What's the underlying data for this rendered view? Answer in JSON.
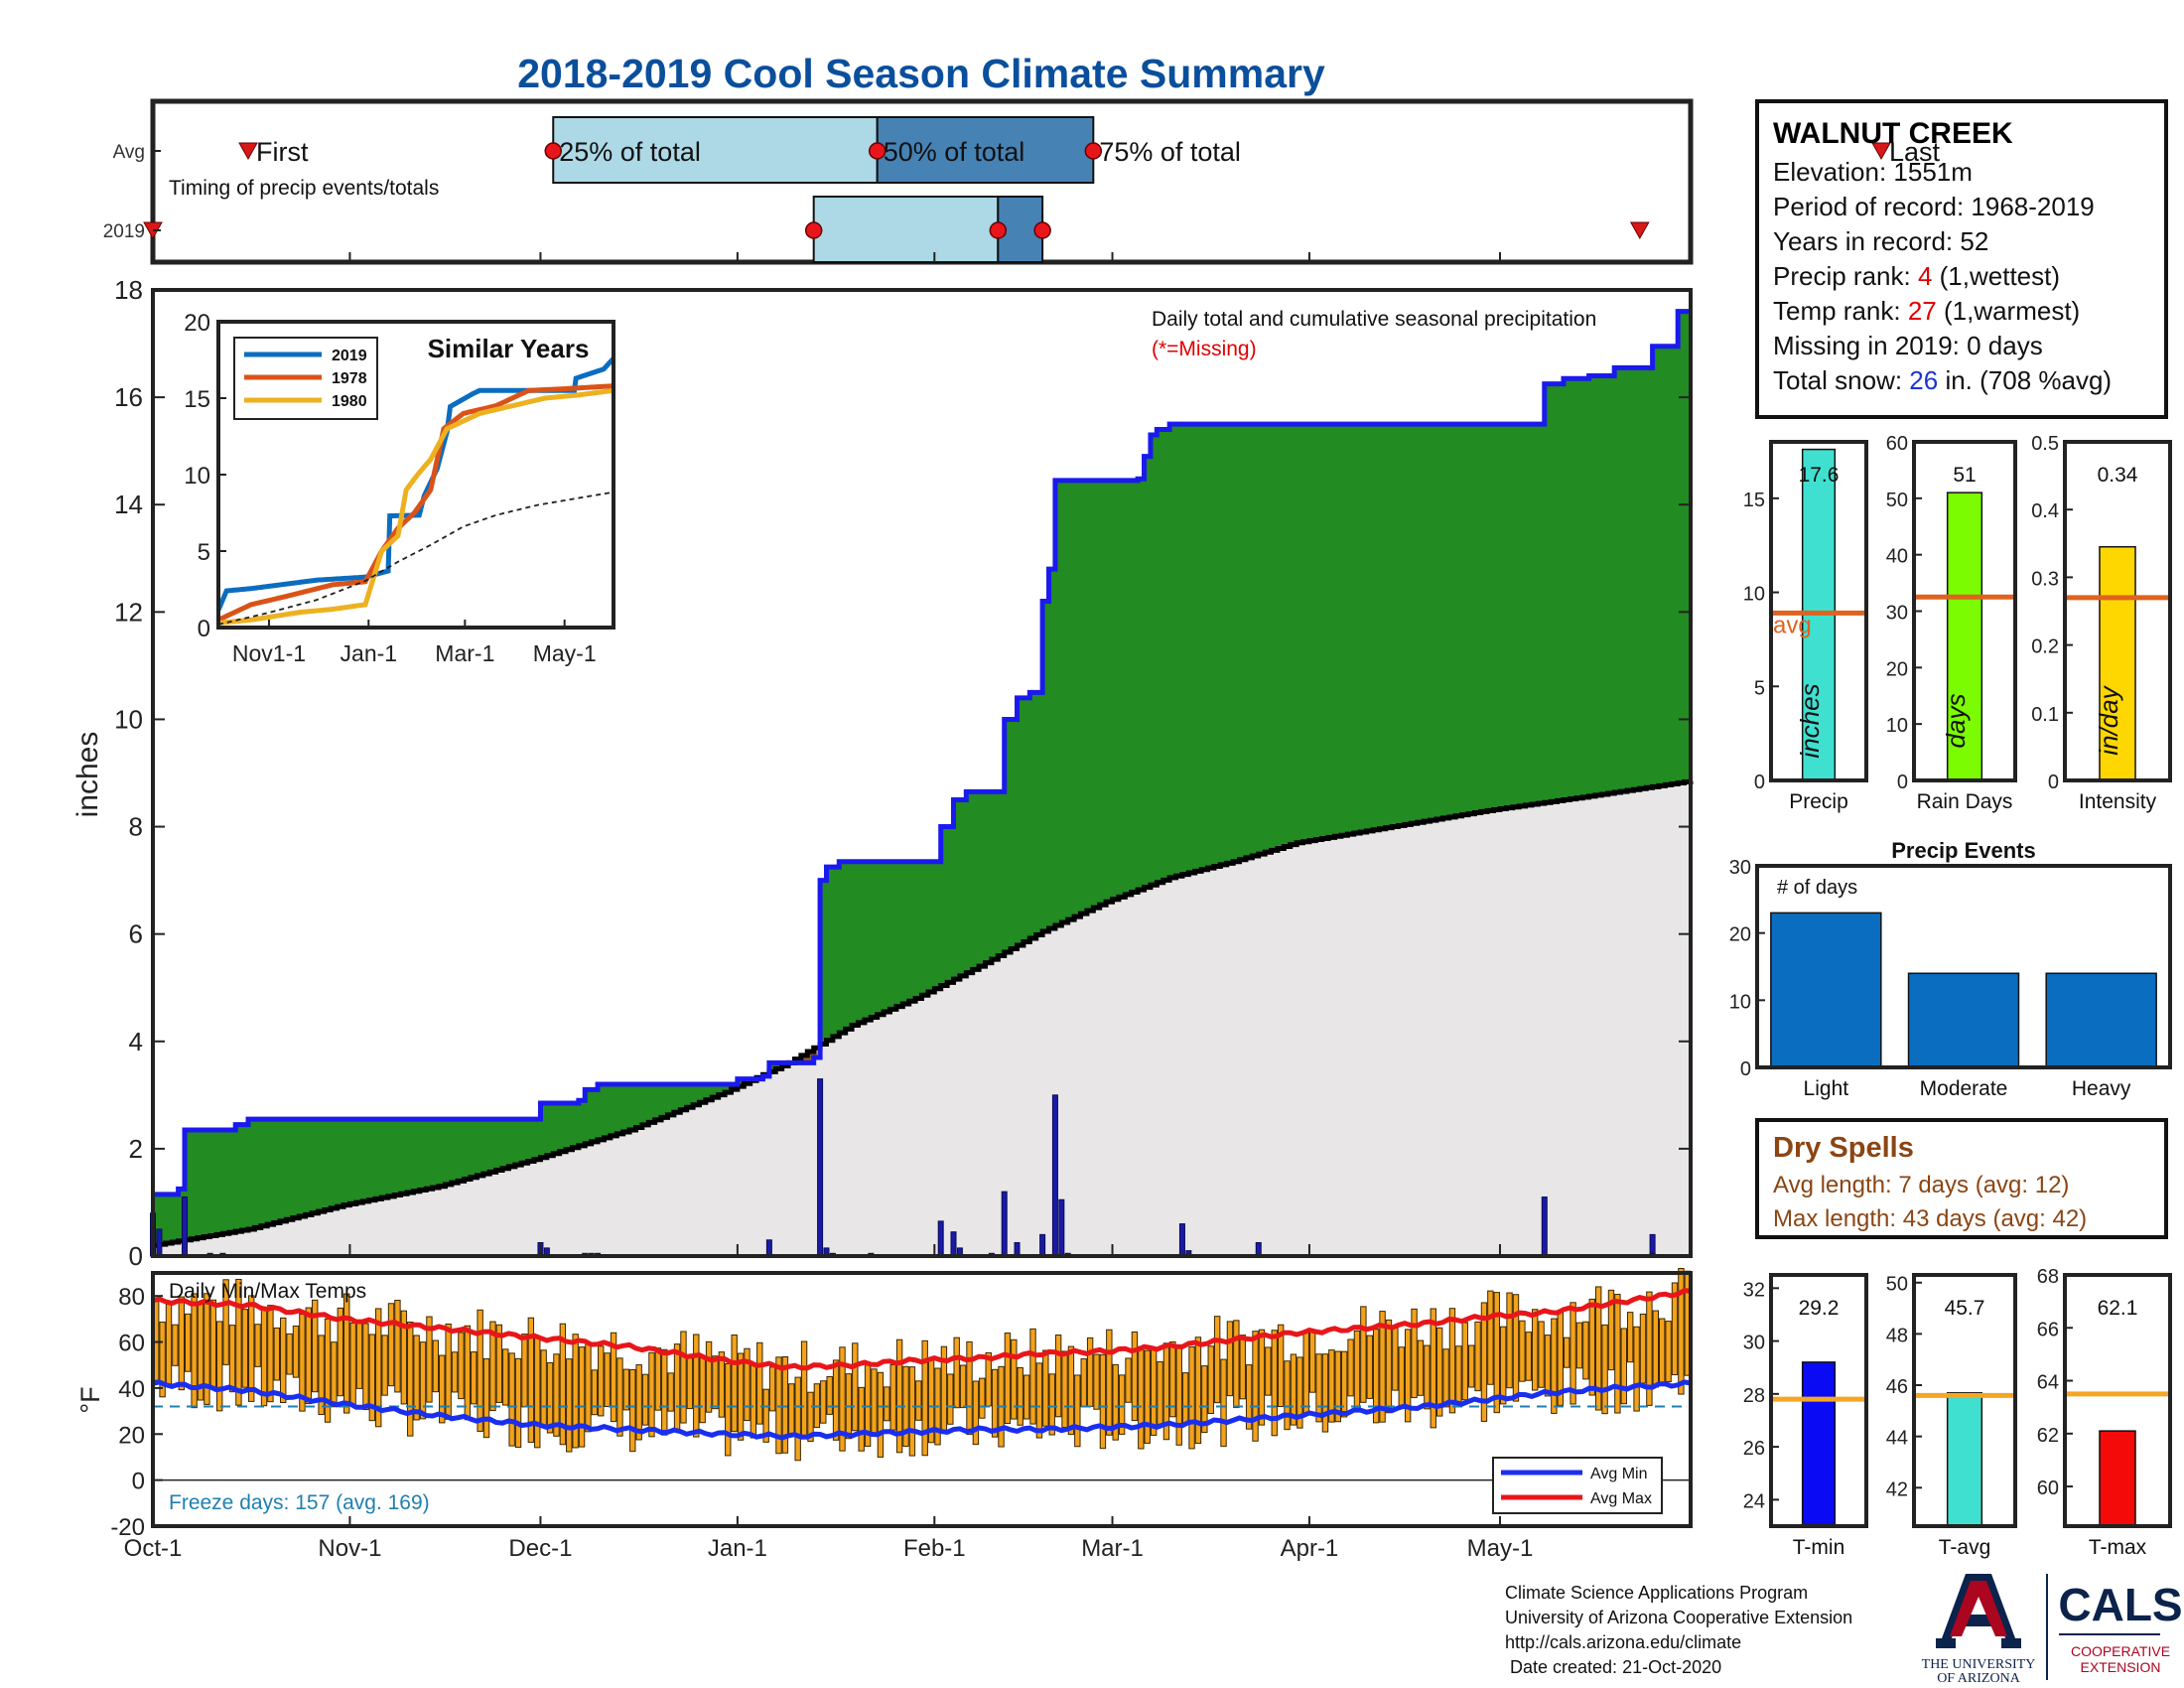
{
  "title": "2018-2019 Cool Season Climate Summary",
  "colors": {
    "title": "#0a4f9c",
    "cum2019": "#1a1aee",
    "avgCum": "#000000",
    "greenFill": "#228b22",
    "greyFill": "#e8e6e6",
    "dailyBar": "#1a1aa8",
    "tempBar": "#f3a21c",
    "avgMax": "#e8161a",
    "avgMin": "#1a2ef0",
    "freezeLine": "#1f7fb0",
    "precipBar": "#40e0d0",
    "rainBar": "#7cfc00",
    "intensityBar": "#ffd700",
    "avgLine": "#e0621e",
    "eventsBar": "#0b6dc0",
    "tminBar": "#0a0af5",
    "tavgBar": "#40e0d0",
    "tmaxBar": "#f50a0a",
    "tempAvgLine": "#f5a623"
  },
  "timing": {
    "avg_label": "Avg",
    "year_label": "2019",
    "caption": "Timing of precip events/totals",
    "first_label": "First",
    "last_label": "Last",
    "p25_label": "25% of total",
    "p50_label": "50% of total",
    "p75_label": "75% of total"
  },
  "chart_data": [
    {
      "type": "timing",
      "x_ticks": [
        "Oct-1",
        "Nov-1",
        "Dec-1",
        "Jan-1",
        "Feb-1",
        "Mar-1",
        "Apr-1",
        "May-1"
      ],
      "avg": {
        "first": 15,
        "p25": 63,
        "p50": 114,
        "p75": 148,
        "last": 272
      },
      "year_2019": {
        "first": 0,
        "p25": 104,
        "p50": 133,
        "p75": 140,
        "last": 234
      }
    },
    {
      "type": "area",
      "title": "Daily total and cumulative seasonal precipitation",
      "subtitle": "(*=Missing)",
      "ylabel": "inches",
      "ylim": [
        0,
        18
      ],
      "yticks": [
        0,
        2,
        4,
        6,
        8,
        10,
        12,
        14,
        16,
        18
      ],
      "x_ticks": [
        "Oct-1",
        "Nov-1",
        "Dec-1",
        "Jan-1",
        "Feb-1",
        "Mar-1",
        "Apr-1",
        "May-1"
      ],
      "cumulative_2019": [
        [
          0,
          1.15
        ],
        [
          4,
          1.25
        ],
        [
          5,
          2.35
        ],
        [
          13,
          2.45
        ],
        [
          15,
          2.55
        ],
        [
          60,
          2.55
        ],
        [
          61,
          2.85
        ],
        [
          67,
          2.9
        ],
        [
          68,
          3.1
        ],
        [
          70,
          3.2
        ],
        [
          90,
          3.2
        ],
        [
          92,
          3.3
        ],
        [
          96,
          3.35
        ],
        [
          97,
          3.6
        ],
        [
          104,
          3.7
        ],
        [
          105,
          7.0
        ],
        [
          106,
          7.25
        ],
        [
          108,
          7.35
        ],
        [
          123,
          7.35
        ],
        [
          124,
          8.0
        ],
        [
          126,
          8.5
        ],
        [
          128,
          8.65
        ],
        [
          133,
          8.65
        ],
        [
          134,
          10.0
        ],
        [
          136,
          10.4
        ],
        [
          138,
          10.5
        ],
        [
          140,
          12.2
        ],
        [
          141,
          12.8
        ],
        [
          142,
          14.45
        ],
        [
          146,
          14.45
        ],
        [
          155,
          14.48
        ],
        [
          156,
          14.9
        ],
        [
          157,
          15.3
        ],
        [
          158,
          15.4
        ],
        [
          160,
          15.5
        ],
        [
          218,
          15.5
        ],
        [
          219,
          16.25
        ],
        [
          222,
          16.35
        ],
        [
          226,
          16.4
        ],
        [
          230,
          16.55
        ],
        [
          236,
          16.95
        ],
        [
          240,
          17.6
        ],
        [
          242,
          17.6
        ]
      ],
      "avg_cumulative": [
        [
          0,
          0.2
        ],
        [
          15,
          0.5
        ],
        [
          30,
          0.95
        ],
        [
          45,
          1.3
        ],
        [
          60,
          1.8
        ],
        [
          75,
          2.35
        ],
        [
          90,
          3.05
        ],
        [
          100,
          3.6
        ],
        [
          110,
          4.3
        ],
        [
          120,
          4.8
        ],
        [
          130,
          5.4
        ],
        [
          140,
          6.05
        ],
        [
          150,
          6.6
        ],
        [
          160,
          7.05
        ],
        [
          170,
          7.35
        ],
        [
          180,
          7.7
        ],
        [
          195,
          8.0
        ],
        [
          210,
          8.3
        ],
        [
          225,
          8.55
        ],
        [
          242,
          8.85
        ]
      ],
      "daily": [
        [
          0,
          0.8
        ],
        [
          1,
          0.5
        ],
        [
          5,
          1.1
        ],
        [
          9,
          0.05
        ],
        [
          11,
          0.05
        ],
        [
          61,
          0.25
        ],
        [
          62,
          0.15
        ],
        [
          68,
          0.05
        ],
        [
          69,
          0.05
        ],
        [
          70,
          0.05
        ],
        [
          97,
          0.3
        ],
        [
          105,
          3.3
        ],
        [
          106,
          0.15
        ],
        [
          107,
          0.05
        ],
        [
          113,
          0.05
        ],
        [
          124,
          0.65
        ],
        [
          126,
          0.45
        ],
        [
          127,
          0.15
        ],
        [
          132,
          0.05
        ],
        [
          134,
          1.2
        ],
        [
          136,
          0.25
        ],
        [
          140,
          0.4
        ],
        [
          142,
          3.0
        ],
        [
          143,
          1.05
        ],
        [
          144,
          0.05
        ],
        [
          162,
          0.6
        ],
        [
          163,
          0.1
        ],
        [
          174,
          0.25
        ],
        [
          219,
          1.1
        ],
        [
          236,
          0.4
        ],
        [
          236,
          0.05
        ]
      ]
    },
    {
      "type": "line",
      "title": "Similar Years",
      "ylim": [
        0,
        20
      ],
      "yticks": [
        0,
        5,
        10,
        15,
        20
      ],
      "x_ticks": [
        "Nov1-1",
        "Jan-1",
        "Mar-1",
        "May-1"
      ],
      "series": [
        {
          "name": "2019",
          "values": [
            [
              0,
              1.15
            ],
            [
              5,
              2.4
            ],
            [
              20,
              2.55
            ],
            [
              60,
              3.1
            ],
            [
              90,
              3.3
            ],
            [
              104,
              3.7
            ],
            [
              105,
              7.3
            ],
            [
              123,
              7.35
            ],
            [
              126,
              8.6
            ],
            [
              134,
              10.4
            ],
            [
              140,
              12.8
            ],
            [
              142,
              14.45
            ],
            [
              156,
              15.3
            ],
            [
              160,
              15.5
            ],
            [
              218,
              15.5
            ],
            [
              219,
              16.3
            ],
            [
              236,
              16.9
            ],
            [
              242,
              17.6
            ]
          ]
        },
        {
          "name": "1978",
          "values": [
            [
              0,
              0.5
            ],
            [
              10,
              1.0
            ],
            [
              20,
              1.5
            ],
            [
              40,
              2.0
            ],
            [
              70,
              2.8
            ],
            [
              90,
              3.0
            ],
            [
              100,
              5.0
            ],
            [
              110,
              6.5
            ],
            [
              120,
              7.5
            ],
            [
              130,
              9.0
            ],
            [
              138,
              13.0
            ],
            [
              150,
              14.0
            ],
            [
              170,
              14.5
            ],
            [
              190,
              15.5
            ],
            [
              210,
              15.6
            ],
            [
              242,
              15.8
            ]
          ]
        },
        {
          "name": "1980",
          "values": [
            [
              0,
              0.3
            ],
            [
              20,
              0.5
            ],
            [
              50,
              1.0
            ],
            [
              70,
              1.2
            ],
            [
              90,
              1.5
            ],
            [
              100,
              5.0
            ],
            [
              110,
              6.0
            ],
            [
              115,
              9.0
            ],
            [
              122,
              10.0
            ],
            [
              130,
              11.0
            ],
            [
              140,
              13.0
            ],
            [
              160,
              14.0
            ],
            [
              180,
              14.5
            ],
            [
              200,
              15.0
            ],
            [
              220,
              15.2
            ],
            [
              242,
              15.5
            ]
          ]
        }
      ],
      "avg_values": [
        [
          0,
          0.2
        ],
        [
          30,
          0.95
        ],
        [
          60,
          1.8
        ],
        [
          90,
          3.05
        ],
        [
          110,
          4.3
        ],
        [
          130,
          5.4
        ],
        [
          150,
          6.6
        ],
        [
          170,
          7.35
        ],
        [
          195,
          8.0
        ],
        [
          225,
          8.55
        ],
        [
          242,
          8.85
        ]
      ]
    },
    {
      "type": "bar",
      "title": "Daily Min/Max Temps",
      "ylabel": "°F",
      "ylim": [
        -20,
        90
      ],
      "yticks": [
        -20,
        0,
        20,
        40,
        60,
        80
      ],
      "x_ticks": [
        "Oct-1",
        "Nov-1",
        "Dec-1",
        "Jan-1",
        "Feb-1",
        "Mar-1",
        "Apr-1",
        "May-1"
      ],
      "avg_max": [
        [
          0,
          78
        ],
        [
          15,
          76
        ],
        [
          30,
          70
        ],
        [
          45,
          66
        ],
        [
          60,
          62
        ],
        [
          75,
          58
        ],
        [
          90,
          52
        ],
        [
          100,
          49
        ],
        [
          110,
          50
        ],
        [
          120,
          52
        ],
        [
          130,
          53
        ],
        [
          140,
          55
        ],
        [
          150,
          56
        ],
        [
          160,
          58
        ],
        [
          170,
          61
        ],
        [
          180,
          64
        ],
        [
          190,
          66
        ],
        [
          200,
          68
        ],
        [
          210,
          71
        ],
        [
          220,
          73
        ],
        [
          230,
          77
        ],
        [
          242,
          82
        ]
      ],
      "avg_min": [
        [
          0,
          42
        ],
        [
          15,
          39
        ],
        [
          30,
          33
        ],
        [
          45,
          28
        ],
        [
          60,
          24
        ],
        [
          75,
          22
        ],
        [
          90,
          20
        ],
        [
          100,
          19
        ],
        [
          110,
          20
        ],
        [
          120,
          21
        ],
        [
          130,
          22
        ],
        [
          140,
          22
        ],
        [
          150,
          23
        ],
        [
          160,
          24
        ],
        [
          170,
          26
        ],
        [
          180,
          28
        ],
        [
          190,
          30
        ],
        [
          200,
          32
        ],
        [
          210,
          35
        ],
        [
          220,
          38
        ],
        [
          230,
          40
        ],
        [
          242,
          42
        ]
      ],
      "freeze_line": 32,
      "legend": {
        "min": "Avg Min",
        "max": "Avg Max"
      },
      "freeze_text": "Freeze days: 157 (avg. 169)"
    },
    {
      "type": "bar",
      "categories": [
        "Precip"
      ],
      "values": [
        17.6
      ],
      "avg": 8.9,
      "ylim": [
        0,
        18
      ],
      "yticks": [
        0,
        5,
        10,
        15
      ],
      "value_label": "17.6",
      "inner_label": "inches",
      "avg_label": "avg"
    },
    {
      "type": "bar",
      "categories": [
        "Rain Days"
      ],
      "values": [
        51
      ],
      "avg": 32.5,
      "ylim": [
        0,
        60
      ],
      "yticks": [
        0,
        10,
        20,
        30,
        40,
        50,
        60
      ],
      "value_label": "51",
      "inner_label": "days"
    },
    {
      "type": "bar",
      "categories": [
        "Intensity"
      ],
      "values": [
        0.345
      ],
      "avg": 0.27,
      "ylim": [
        0,
        0.5
      ],
      "yticks": [
        0,
        0.1,
        0.2,
        0.3,
        0.4,
        0.5
      ],
      "value_label": "0.34",
      "inner_label": "in/day"
    },
    {
      "type": "bar",
      "title": "Precip Events",
      "categories": [
        "Light",
        "Moderate",
        "Heavy"
      ],
      "values": [
        23,
        14,
        14
      ],
      "ylim": [
        0,
        30
      ],
      "yticks": [
        0,
        10,
        20,
        30
      ],
      "ylabel_inside": "# of days"
    },
    {
      "type": "bar",
      "categories": [
        "T-min"
      ],
      "values": [
        29.2
      ],
      "avg": 27.8,
      "ylim": [
        23,
        32.5
      ],
      "yticks": [
        24,
        26,
        28,
        30,
        32
      ],
      "value_label": "29.2"
    },
    {
      "type": "bar",
      "categories": [
        "T-avg"
      ],
      "values": [
        45.7
      ],
      "avg": 45.6,
      "ylim": [
        40.5,
        50.3
      ],
      "yticks": [
        42,
        44,
        46,
        48,
        50
      ],
      "value_label": "45.7"
    },
    {
      "type": "bar",
      "categories": [
        "T-max"
      ],
      "values": [
        62.1
      ],
      "avg": 63.5,
      "ylim": [
        58.5,
        68
      ],
      "yticks": [
        60,
        62,
        64,
        66,
        68
      ],
      "value_label": "62.1"
    }
  ],
  "station": {
    "name": "WALNUT CREEK",
    "elevation": "Elevation: 1551m",
    "period": "Period of record: 1968-2019",
    "years": "Years in record: 52",
    "precip_rank_prefix": "Precip rank: ",
    "precip_rank": "4",
    "precip_rank_suffix": " (1,wettest)",
    "temp_rank_prefix": "Temp rank: ",
    "temp_rank": "27",
    "temp_rank_suffix": " (1,warmest)",
    "missing": "Missing in 2019: 0 days",
    "snow_prefix": "Total snow: ",
    "snow": "26",
    "snow_suffix": " in. (708 %avg)"
  },
  "dry_spells": {
    "title": "Dry Spells",
    "avg_length": "Avg length: 7 days (avg: 12)",
    "max_length": "Max length: 43 days (avg: 42)"
  },
  "credits": {
    "line1": "Climate Science Applications Program",
    "line2": "University of Arizona Cooperative Extension",
    "line3": "http://cals.arizona.edu/climate",
    "line4": " Date created: 21-Oct-2020"
  },
  "logo": {
    "ua_line1": "THE UNIVERSITY",
    "ua_line2": "OF ARIZONA",
    "cals": "CALS",
    "coop1": "COOPERATIVE",
    "coop2": "EXTENSION"
  }
}
